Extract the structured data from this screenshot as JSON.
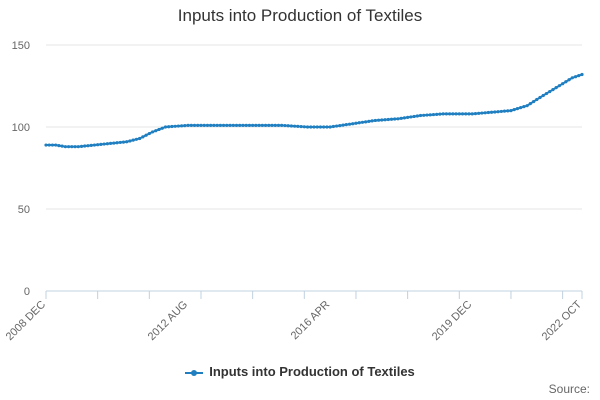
{
  "chart_data": {
    "type": "line",
    "title": "Inputs into Production of Textiles",
    "xlabel": "",
    "ylabel": "",
    "ylim": [
      0,
      150
    ],
    "yticks": [
      0,
      50,
      100,
      150
    ],
    "x_tick_labels": [
      "2008 DEC",
      "2012 AUG",
      "2016 APR",
      "2019 DEC",
      "2022 OCT"
    ],
    "grid": "horizontal",
    "legend_position": "bottom",
    "series": [
      {
        "name": "Inputs into Production of Textiles",
        "color": "#1f7fc0",
        "keypoints": [
          {
            "x": "2008 DEC",
            "y": 89
          },
          {
            "x": "2009 MAR",
            "y": 89
          },
          {
            "x": "2009 JUN",
            "y": 88
          },
          {
            "x": "2009 OCT",
            "y": 88
          },
          {
            "x": "2010 MAR",
            "y": 89
          },
          {
            "x": "2010 AUG",
            "y": 90
          },
          {
            "x": "2011 JAN",
            "y": 91
          },
          {
            "x": "2011 MAY",
            "y": 93
          },
          {
            "x": "2011 SEP",
            "y": 97
          },
          {
            "x": "2012 JAN",
            "y": 100
          },
          {
            "x": "2012 AUG",
            "y": 101
          },
          {
            "x": "2013 JUN",
            "y": 101
          },
          {
            "x": "2014 APR",
            "y": 101
          },
          {
            "x": "2015 JAN",
            "y": 101
          },
          {
            "x": "2015 SEP",
            "y": 100
          },
          {
            "x": "2016 APR",
            "y": 100
          },
          {
            "x": "2016 NOV",
            "y": 102
          },
          {
            "x": "2017 JUN",
            "y": 104
          },
          {
            "x": "2018 JAN",
            "y": 105
          },
          {
            "x": "2018 AUG",
            "y": 107
          },
          {
            "x": "2019 MAR",
            "y": 108
          },
          {
            "x": "2019 DEC",
            "y": 108
          },
          {
            "x": "2020 JUN",
            "y": 109
          },
          {
            "x": "2020 DEC",
            "y": 110
          },
          {
            "x": "2021 MAY",
            "y": 113
          },
          {
            "x": "2021 SEP",
            "y": 118
          },
          {
            "x": "2022 FEB",
            "y": 124
          },
          {
            "x": "2022 JUL",
            "y": 130
          },
          {
            "x": "2022 OCT",
            "y": 132
          }
        ]
      }
    ]
  },
  "credits": "Source:"
}
